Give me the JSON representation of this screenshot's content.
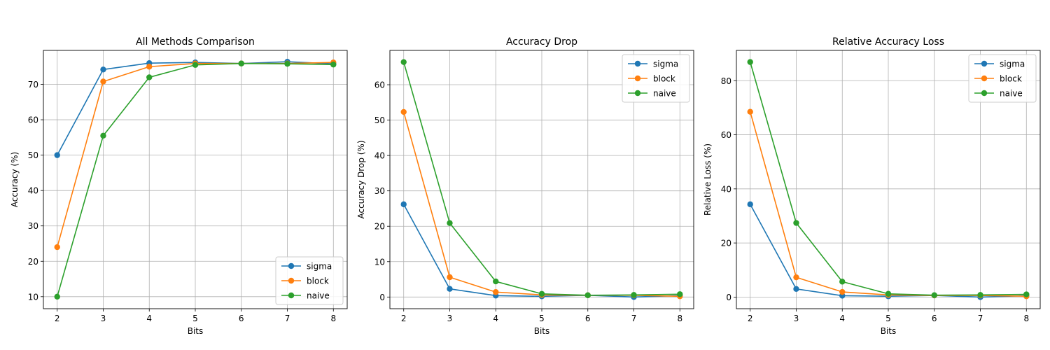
{
  "chart_data": [
    {
      "type": "line",
      "title": "All Methods Comparison",
      "xlabel": "Bits",
      "ylabel": "Accuracy (%)",
      "x": [
        2,
        3,
        4,
        5,
        6,
        7,
        8
      ],
      "xlim": [
        1.7,
        8.3
      ],
      "ylim": [
        6.6,
        79.6
      ],
      "xticks": [
        2,
        3,
        4,
        5,
        6,
        7,
        8
      ],
      "yticks": [
        10,
        20,
        30,
        40,
        50,
        60,
        70
      ],
      "grid": true,
      "legend_position": "lower-right",
      "series": [
        {
          "name": "sigma",
          "color": "#1f77b4",
          "values": [
            50.0,
            74.2,
            76.0,
            76.2,
            75.9,
            76.4,
            75.8
          ]
        },
        {
          "name": "block",
          "color": "#ff7f0e",
          "values": [
            24.0,
            70.8,
            75.0,
            75.9,
            75.9,
            75.9,
            76.2
          ]
        },
        {
          "name": "naive",
          "color": "#2ca02c",
          "values": [
            10.0,
            55.5,
            72.0,
            75.5,
            75.9,
            75.8,
            75.6
          ]
        }
      ]
    },
    {
      "type": "line",
      "title": "Accuracy Drop",
      "xlabel": "Bits",
      "ylabel": "Accuracy Drop (%)",
      "x": [
        2,
        3,
        4,
        5,
        6,
        7,
        8
      ],
      "xlim": [
        1.7,
        8.3
      ],
      "ylim": [
        -3.3,
        69.7
      ],
      "xticks": [
        2,
        3,
        4,
        5,
        6,
        7,
        8
      ],
      "yticks": [
        0,
        10,
        20,
        30,
        40,
        50,
        60
      ],
      "grid": true,
      "legend_position": "upper-right",
      "series": [
        {
          "name": "sigma",
          "color": "#1f77b4",
          "values": [
            26.2,
            2.3,
            0.4,
            0.2,
            0.5,
            0.0,
            0.4
          ]
        },
        {
          "name": "block",
          "color": "#ff7f0e",
          "values": [
            52.3,
            5.6,
            1.4,
            0.6,
            0.5,
            0.5,
            0.2
          ]
        },
        {
          "name": "naive",
          "color": "#2ca02c",
          "values": [
            66.4,
            20.9,
            4.4,
            0.9,
            0.5,
            0.6,
            0.8
          ]
        }
      ]
    },
    {
      "type": "line",
      "title": "Relative Accuracy Loss",
      "xlabel": "Bits",
      "ylabel": "Relative Loss (%)",
      "x": [
        2,
        3,
        4,
        5,
        6,
        7,
        8
      ],
      "xlim": [
        1.7,
        8.3
      ],
      "ylim": [
        -4.3,
        91.2
      ],
      "xticks": [
        2,
        3,
        4,
        5,
        6,
        7,
        8
      ],
      "yticks": [
        0,
        20,
        40,
        60,
        80
      ],
      "grid": true,
      "legend_position": "upper-right",
      "series": [
        {
          "name": "sigma",
          "color": "#1f77b4",
          "values": [
            34.3,
            3.0,
            0.5,
            0.3,
            0.6,
            0.0,
            0.5
          ]
        },
        {
          "name": "block",
          "color": "#ff7f0e",
          "values": [
            68.5,
            7.3,
            1.9,
            0.8,
            0.6,
            0.6,
            0.3
          ]
        },
        {
          "name": "naive",
          "color": "#2ca02c",
          "values": [
            86.9,
            27.4,
            5.7,
            1.2,
            0.7,
            0.8,
            1.0
          ]
        }
      ]
    }
  ]
}
